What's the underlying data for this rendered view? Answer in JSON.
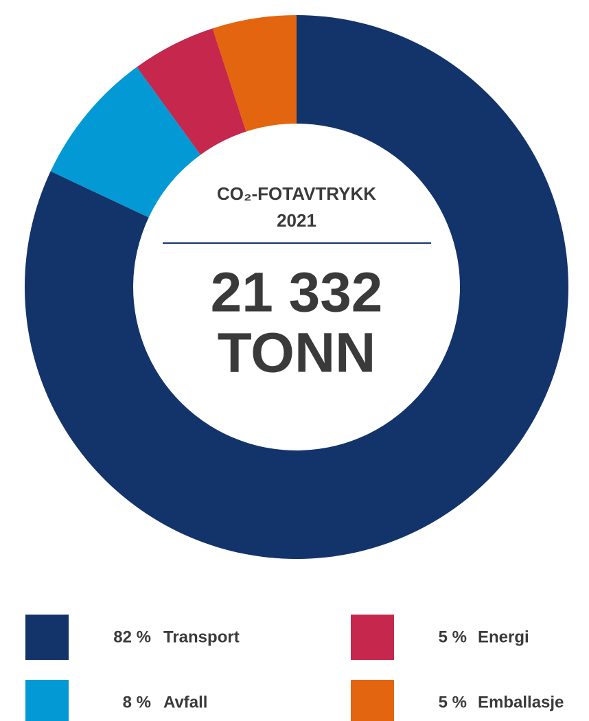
{
  "chart_data": {
    "type": "donut",
    "center_title": "CO₂-FOTAVTRYKK",
    "center_subtitle": "2021",
    "total_label": "21 332",
    "unit_label": "TONN",
    "categories": [
      "Transport",
      "Avfall",
      "Energi",
      "Emballasje"
    ],
    "values": [
      82,
      8,
      5,
      5
    ],
    "value_labels": [
      "82 %",
      "8 %",
      "5 %",
      "5 %"
    ],
    "colors": [
      "#13336b",
      "#0399d5",
      "#c5274d",
      "#e3650f"
    ]
  }
}
